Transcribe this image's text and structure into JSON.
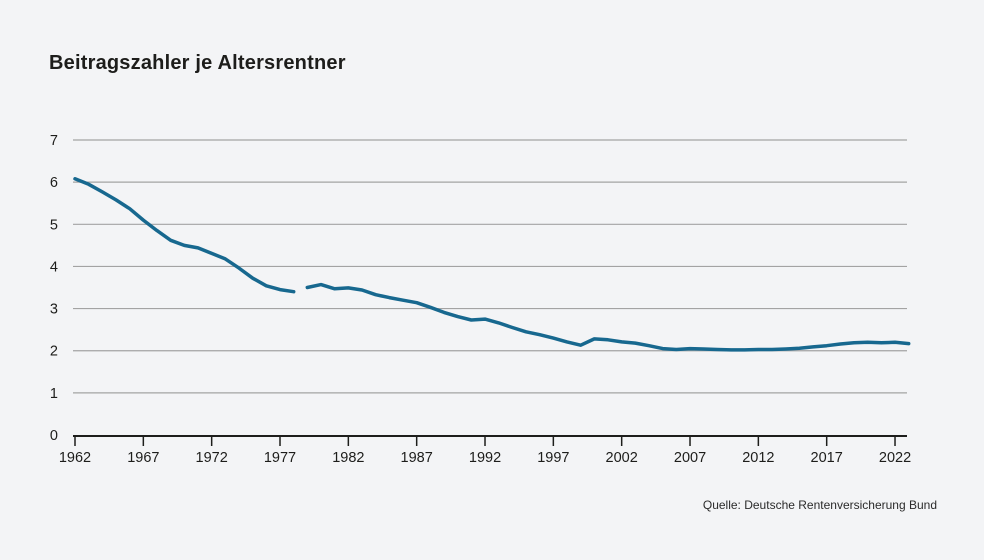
{
  "title": "Beitragszahler je Altersrentner",
  "source": "Quelle: Deutsche Rentenversicherung Bund",
  "colors": {
    "background": "#f3f4f6",
    "line": "#17688f",
    "grid": "#a3a3a3",
    "axis": "#1d1d1b",
    "text": "#1d1d1b",
    "source_text": "#2b2b2b"
  },
  "chart_data": {
    "type": "line",
    "title": "Beitragszahler je Altersrentner",
    "xlabel": "",
    "ylabel": "",
    "xlim": [
      1962,
      2023.5
    ],
    "ylim": [
      0,
      7
    ],
    "y_ticks": [
      0,
      1,
      2,
      3,
      4,
      5,
      6,
      7
    ],
    "x_ticks": [
      1962,
      1967,
      1972,
      1977,
      1982,
      1987,
      1992,
      1997,
      2002,
      2007,
      2012,
      2017,
      2022
    ],
    "grid": "horizontal",
    "legend": "none",
    "note": "Series has a break between 1978 and 1979",
    "series": [
      {
        "name": "Beitragszahler je Altersrentner 1962-1978",
        "x": [
          1962,
          1963,
          1964,
          1965,
          1966,
          1967,
          1968,
          1969,
          1970,
          1971,
          1972,
          1973,
          1974,
          1975,
          1976,
          1977,
          1978
        ],
        "y": [
          6.08,
          5.95,
          5.77,
          5.58,
          5.37,
          5.1,
          4.85,
          4.62,
          4.5,
          4.44,
          4.31,
          4.18,
          3.96,
          3.72,
          3.54,
          3.45,
          3.4
        ]
      },
      {
        "name": "Beitragszahler je Altersrentner 1979-2023",
        "x": [
          1979,
          1980,
          1981,
          1982,
          1983,
          1984,
          1985,
          1986,
          1987,
          1988,
          1989,
          1990,
          1991,
          1992,
          1993,
          1994,
          1995,
          1996,
          1997,
          1998,
          1999,
          2000,
          2001,
          2002,
          2003,
          2004,
          2005,
          2006,
          2007,
          2008,
          2009,
          2010,
          2011,
          2012,
          2013,
          2014,
          2015,
          2016,
          2017,
          2018,
          2019,
          2020,
          2021,
          2022,
          2023
        ],
        "y": [
          3.5,
          3.57,
          3.47,
          3.49,
          3.44,
          3.33,
          3.26,
          3.2,
          3.14,
          3.03,
          2.91,
          2.81,
          2.73,
          2.75,
          2.66,
          2.55,
          2.45,
          2.38,
          2.3,
          2.21,
          2.13,
          2.28,
          2.26,
          2.21,
          2.18,
          2.12,
          2.05,
          2.03,
          2.05,
          2.04,
          2.03,
          2.02,
          2.02,
          2.03,
          2.03,
          2.04,
          2.06,
          2.09,
          2.12,
          2.16,
          2.19,
          2.2,
          2.19,
          2.2,
          2.17
        ]
      }
    ]
  }
}
